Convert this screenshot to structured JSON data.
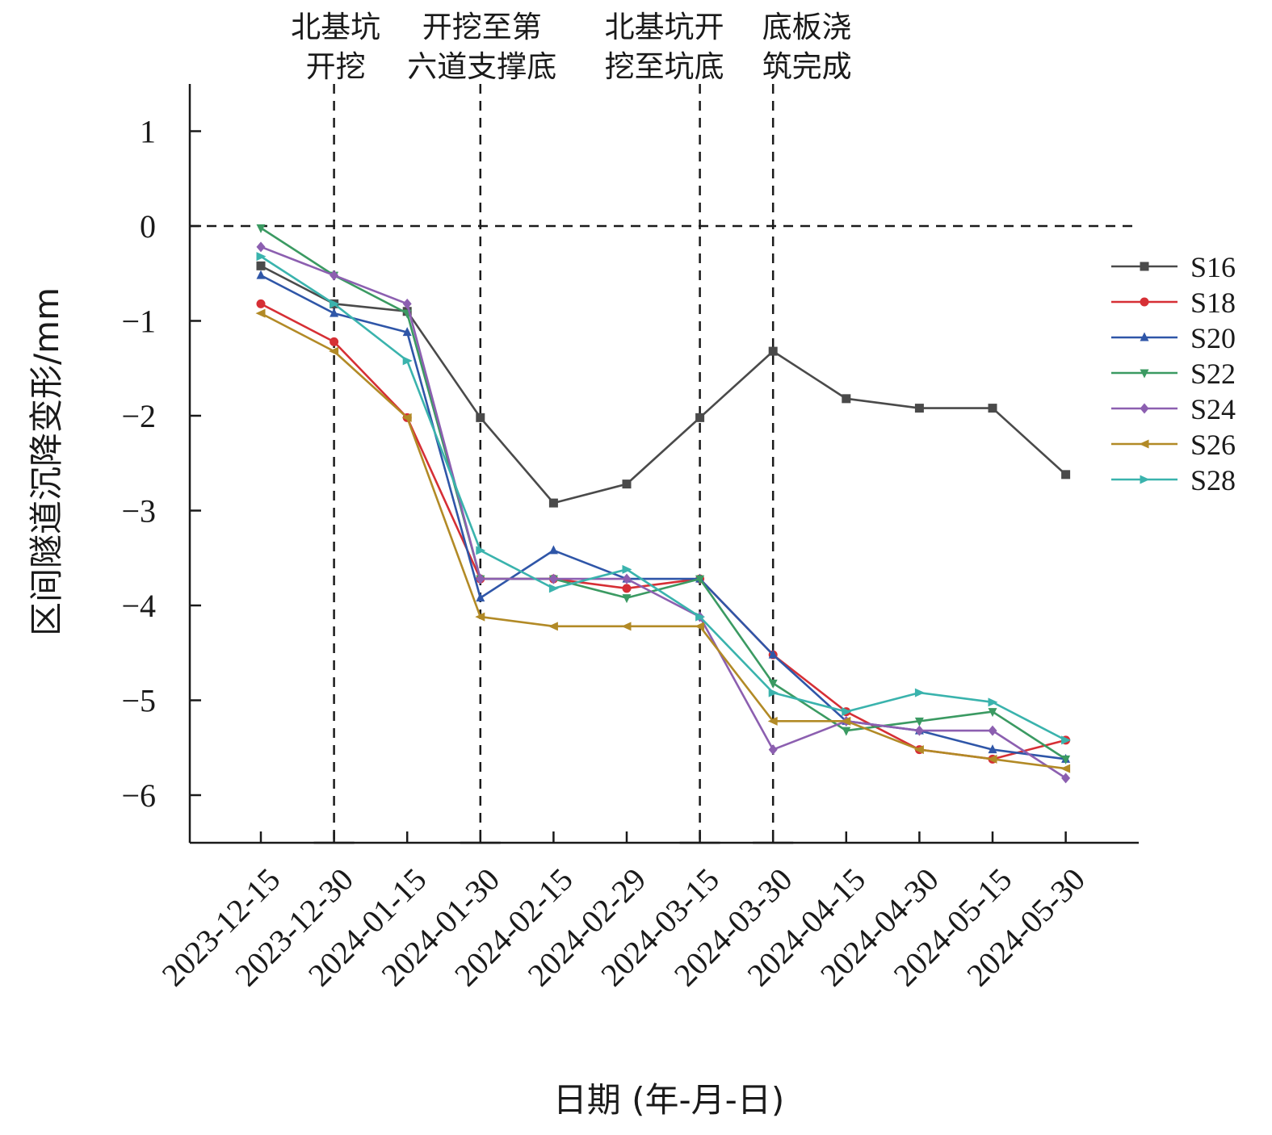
{
  "chart_data": {
    "type": "line",
    "title": "",
    "xlabel": "日期 (年-月-日)",
    "ylabel": "区间隧道沉降变形/mm",
    "ylim": [
      -6.5,
      1.5
    ],
    "yticks": [
      1,
      0,
      -1,
      -2,
      -3,
      -4,
      -5,
      -6
    ],
    "ytick_labels": [
      "1",
      "0",
      "−1",
      "−2",
      "−3",
      "−4",
      "−5",
      "−6"
    ],
    "categories": [
      "2023-12-15",
      "2023-12-30",
      "2024-01-15",
      "2024-01-30",
      "2024-02-15",
      "2024-02-29",
      "2024-03-15",
      "2024-03-30",
      "2024-04-15",
      "2024-04-30",
      "2024-05-15",
      "2024-05-30"
    ],
    "grid": false,
    "legend_position": "right",
    "zero_line": true,
    "series": [
      {
        "name": "S16",
        "color": "#4a4a4a",
        "marker": "square",
        "values": [
          -0.42,
          -0.82,
          -0.9,
          -2.02,
          -2.92,
          -2.72,
          -2.02,
          -1.32,
          -1.82,
          -1.92,
          -1.92,
          -2.62
        ]
      },
      {
        "name": "S18",
        "color": "#d62f35",
        "marker": "circle",
        "values": [
          -0.82,
          -1.22,
          -2.02,
          -3.72,
          -3.72,
          -3.82,
          -3.72,
          -4.52,
          -5.12,
          -5.52,
          -5.62,
          -5.42
        ]
      },
      {
        "name": "S20",
        "color": "#2f56a8",
        "marker": "triangle-up",
        "values": [
          -0.52,
          -0.92,
          -1.12,
          -3.92,
          -3.42,
          -3.72,
          -3.72,
          -4.52,
          -5.22,
          -5.32,
          -5.52,
          -5.62
        ]
      },
      {
        "name": "S22",
        "color": "#3b9a62",
        "marker": "triangle-down",
        "values": [
          -0.02,
          -0.52,
          -0.92,
          -3.72,
          -3.72,
          -3.92,
          -3.72,
          -4.82,
          -5.32,
          -5.22,
          -5.12,
          -5.62
        ]
      },
      {
        "name": "S24",
        "color": "#8c5fb0",
        "marker": "diamond",
        "values": [
          -0.22,
          -0.52,
          -0.82,
          -3.72,
          -3.72,
          -3.72,
          -4.12,
          -5.52,
          -5.22,
          -5.32,
          -5.32,
          -5.82
        ]
      },
      {
        "name": "S26",
        "color": "#b28a26",
        "marker": "triangle-left",
        "values": [
          -0.92,
          -1.32,
          -2.02,
          -4.12,
          -4.22,
          -4.22,
          -4.22,
          -5.22,
          -5.22,
          -5.52,
          -5.62,
          -5.72
        ]
      },
      {
        "name": "S28",
        "color": "#3ab3ad",
        "marker": "triangle-right",
        "values": [
          -0.32,
          -0.82,
          -1.42,
          -3.42,
          -3.82,
          -3.62,
          -4.12,
          -4.92,
          -5.12,
          -4.92,
          -5.02,
          -5.42
        ]
      }
    ],
    "annotations": [
      {
        "lines": [
          "北基坑",
          "开挖"
        ],
        "at_index": 1
      },
      {
        "lines": [
          "开挖至第",
          "六道支撑底"
        ],
        "at_index": 3
      },
      {
        "lines": [
          "北基坑开",
          "挖至坑底"
        ],
        "at_index": 6
      },
      {
        "lines": [
          "底板浇",
          "筑完成"
        ],
        "at_index": 7
      }
    ]
  }
}
